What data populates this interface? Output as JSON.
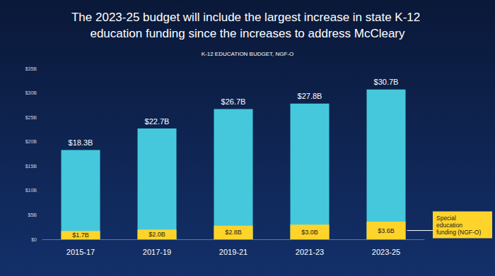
{
  "chart_data": {
    "type": "bar",
    "title": "The 2023-25 budget will include the largest increase in state K-12 education funding since the increases to address McCleary",
    "subtitle": "K-12 EDUCATION BUDGET, NGF-O",
    "categories": [
      "2015-17",
      "2017-19",
      "2019-21",
      "2021-23",
      "2023-25"
    ],
    "series": [
      {
        "color": "#45c8dc",
        "values": [
          18.3,
          22.7,
          26.7,
          27.8,
          30.7
        ],
        "value_labels": [
          "$18.3B",
          "$22.7B",
          "$26.7B",
          "$27.8B",
          "$30.7B"
        ]
      },
      {
        "name": "Special education funding (NGF-O)",
        "color": "#ffd42a",
        "values": [
          1.7,
          2.0,
          2.8,
          3.0,
          3.6
        ],
        "value_labels": [
          "$1.7B",
          "$2.0B",
          "$2.8B",
          "$3.0B",
          "$3.6B"
        ]
      }
    ],
    "ylim": [
      0,
      35
    ],
    "yticks": [
      {
        "value": 0,
        "label": "$0"
      },
      {
        "value": 5,
        "label": "$5B"
      },
      {
        "value": 10,
        "label": "$10B"
      },
      {
        "value": 15,
        "label": "$15B"
      },
      {
        "value": 20,
        "label": "$20B"
      },
      {
        "value": 25,
        "label": "$25B"
      },
      {
        "value": 30,
        "label": "$30B"
      },
      {
        "value": 35,
        "label": "$35B"
      }
    ],
    "stacked": false,
    "grid": false,
    "data_labels": true
  }
}
